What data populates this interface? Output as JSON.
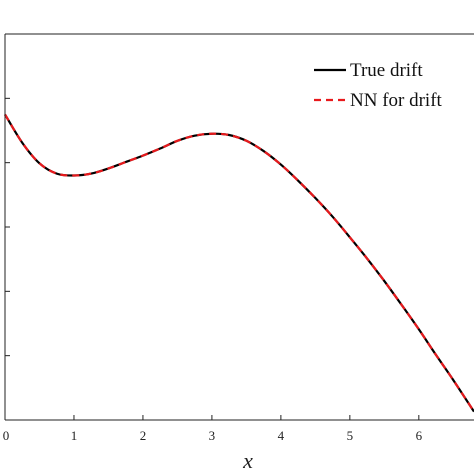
{
  "chart_data": {
    "type": "line",
    "title": "",
    "xlabel": "x",
    "ylabel": "",
    "xlim": [
      0,
      6.8
    ],
    "ylim": [
      0,
      6
    ],
    "x_ticks": [
      0,
      1,
      2,
      3,
      4,
      5,
      6
    ],
    "x_tick_labels": [
      "0",
      "1",
      "2",
      "3",
      "4",
      "5",
      "6"
    ],
    "y_ticks": [
      1,
      2,
      3,
      4,
      5
    ],
    "grid": false,
    "legend_position": "top-right",
    "series": [
      {
        "name": "True drift",
        "color": "#000000",
        "style": "solid",
        "x": [
          0,
          0.25,
          0.5,
          0.75,
          1.0,
          1.25,
          1.5,
          1.75,
          2.0,
          2.25,
          2.5,
          2.75,
          3.0,
          3.25,
          3.5,
          3.75,
          4.0,
          4.25,
          4.5,
          4.75,
          5.0,
          5.25,
          5.5,
          5.75,
          6.0,
          6.25,
          6.5,
          6.8
        ],
        "y": [
          4.75,
          4.31,
          3.99,
          3.83,
          3.8,
          3.83,
          3.91,
          4.01,
          4.11,
          4.22,
          4.34,
          4.42,
          4.45,
          4.43,
          4.34,
          4.18,
          3.97,
          3.72,
          3.45,
          3.16,
          2.84,
          2.51,
          2.16,
          1.79,
          1.41,
          1.01,
          0.62,
          0.13
        ]
      },
      {
        "name": "NN for drift",
        "color": "#e8191c",
        "style": "dashed",
        "x": [
          0,
          0.25,
          0.5,
          0.75,
          1.0,
          1.25,
          1.5,
          1.75,
          2.0,
          2.25,
          2.5,
          2.75,
          3.0,
          3.25,
          3.5,
          3.75,
          4.0,
          4.25,
          4.5,
          4.75,
          5.0,
          5.25,
          5.5,
          5.75,
          6.0,
          6.25,
          6.5,
          6.8
        ],
        "y": [
          4.75,
          4.31,
          3.99,
          3.83,
          3.8,
          3.83,
          3.91,
          4.01,
          4.11,
          4.22,
          4.34,
          4.42,
          4.45,
          4.43,
          4.34,
          4.18,
          3.97,
          3.72,
          3.45,
          3.16,
          2.84,
          2.51,
          2.16,
          1.79,
          1.41,
          1.01,
          0.62,
          0.13
        ]
      }
    ]
  }
}
